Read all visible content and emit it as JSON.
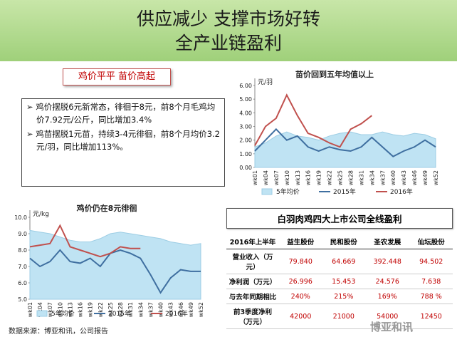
{
  "header": {
    "title": "供应减少 支撑市场好转",
    "subtitle": "全产业链盈利"
  },
  "callout": "鸡价平平 苗价高起",
  "bullets": [
    "鸡价摆脱6元新常态，徘徊于8元，前8个月毛鸡均价7.92元/公斤，同比增加3.4%",
    "鸡苗摆脱1元苗，持续3-4元徘徊，前8个月均价3.2元/羽，同比增加113%。"
  ],
  "chart_data": [
    {
      "type": "line",
      "title": "苗价回到五年均值以上",
      "y_label": "元/羽",
      "categories": [
        "wk01",
        "wk04",
        "wk07",
        "wk10",
        "wk13",
        "wk16",
        "wk19",
        "wk22",
        "wk25",
        "wk28",
        "wk31",
        "wk34",
        "wk37",
        "wk40",
        "wk43",
        "wk46",
        "wk49",
        "wk52"
      ],
      "ylim": [
        0,
        6
      ],
      "yticks": [
        {
          "value": 0,
          "label": "0.00"
        },
        {
          "value": 1,
          "label": "1.00"
        },
        {
          "value": 2,
          "label": "2.00"
        },
        {
          "value": 3,
          "label": "3.00"
        },
        {
          "value": 4,
          "label": "4.00"
        },
        {
          "value": 5,
          "label": "5.00"
        },
        {
          "value": 6,
          "label": "6.00"
        }
      ],
      "series": [
        {
          "name": "5年均价",
          "color": "#bfe3f3",
          "style": "area",
          "values": [
            1.5,
            1.8,
            2.3,
            2.6,
            2.3,
            2.2,
            2.0,
            2.3,
            2.5,
            2.6,
            2.4,
            2.4,
            2.6,
            2.4,
            2.3,
            2.5,
            2.4,
            2.1
          ]
        },
        {
          "name": "2015年",
          "color": "#3f6fa0",
          "style": "line",
          "values": [
            1.2,
            2.0,
            2.8,
            2.0,
            2.3,
            1.5,
            1.2,
            1.5,
            1.3,
            1.2,
            1.5,
            2.2,
            1.5,
            0.8,
            1.2,
            1.5,
            2.0,
            1.5
          ]
        },
        {
          "name": "2016年",
          "color": "#c0504d",
          "style": "line",
          "values": [
            1.6,
            3.0,
            3.6,
            5.3,
            3.8,
            2.5,
            2.2,
            1.8,
            1.5,
            2.8,
            3.2,
            3.8,
            null,
            null,
            null,
            null,
            null,
            null
          ]
        }
      ]
    },
    {
      "type": "line",
      "title": "鸡价仍在8元徘徊",
      "y_label": "元/kg",
      "categories": [
        "wk01",
        "wk04",
        "wk07",
        "wk10",
        "wk13",
        "wk16",
        "wk19",
        "wk22",
        "wk25",
        "wk28",
        "wk31",
        "wk34",
        "wk37",
        "wk40",
        "wk43",
        "wk46",
        "wk49",
        "wk52"
      ],
      "ylim": [
        5,
        10
      ],
      "yticks": [
        {
          "value": 5,
          "label": "5.0"
        },
        {
          "value": 6,
          "label": "6.0"
        },
        {
          "value": 7,
          "label": "7.0"
        },
        {
          "value": 8,
          "label": "8.0"
        },
        {
          "value": 9,
          "label": "9.0"
        },
        {
          "value": 10,
          "label": "10.0"
        }
      ],
      "series": [
        {
          "name": "5年均价",
          "color": "#bfe3f3",
          "style": "area",
          "values": [
            9.2,
            9.1,
            9.0,
            8.8,
            8.6,
            8.5,
            8.5,
            8.7,
            9.0,
            9.1,
            9.0,
            8.9,
            8.8,
            8.7,
            8.5,
            8.4,
            8.3,
            8.4
          ]
        },
        {
          "name": "2015年",
          "color": "#3f6fa0",
          "style": "line",
          "values": [
            7.5,
            7.0,
            7.3,
            8.0,
            7.3,
            7.2,
            7.5,
            7.0,
            7.8,
            8.0,
            7.8,
            7.5,
            6.5,
            5.4,
            6.3,
            6.8,
            6.7,
            6.7
          ]
        },
        {
          "name": "2016年",
          "color": "#c0504d",
          "style": "line",
          "values": [
            8.2,
            8.3,
            8.4,
            9.5,
            8.2,
            8.0,
            7.8,
            7.6,
            7.8,
            8.2,
            8.1,
            8.1,
            null,
            null,
            null,
            null,
            null,
            null
          ]
        }
      ]
    }
  ],
  "table": {
    "title": "白羽肉鸡四大上市公司全线盈利",
    "header": [
      "2016年上半年",
      "益生股份",
      "民和股份",
      "圣农发展",
      "仙坛股份"
    ],
    "rows": [
      [
        "营业收入（万元）",
        "79.840",
        "64.669",
        "392.448",
        "94.502"
      ],
      [
        "净利润（万元）",
        "26.996",
        "15.453",
        "24.576",
        "7.638"
      ],
      [
        "与去年同期相比",
        "240%",
        "215%",
        "169%",
        "788 %"
      ],
      [
        "前3季度净利（万元）",
        "42000",
        "21000",
        "54000",
        "12450"
      ]
    ]
  },
  "source": "数据来源：博亚和讯，公司报告",
  "watermark": "博亚和讯"
}
